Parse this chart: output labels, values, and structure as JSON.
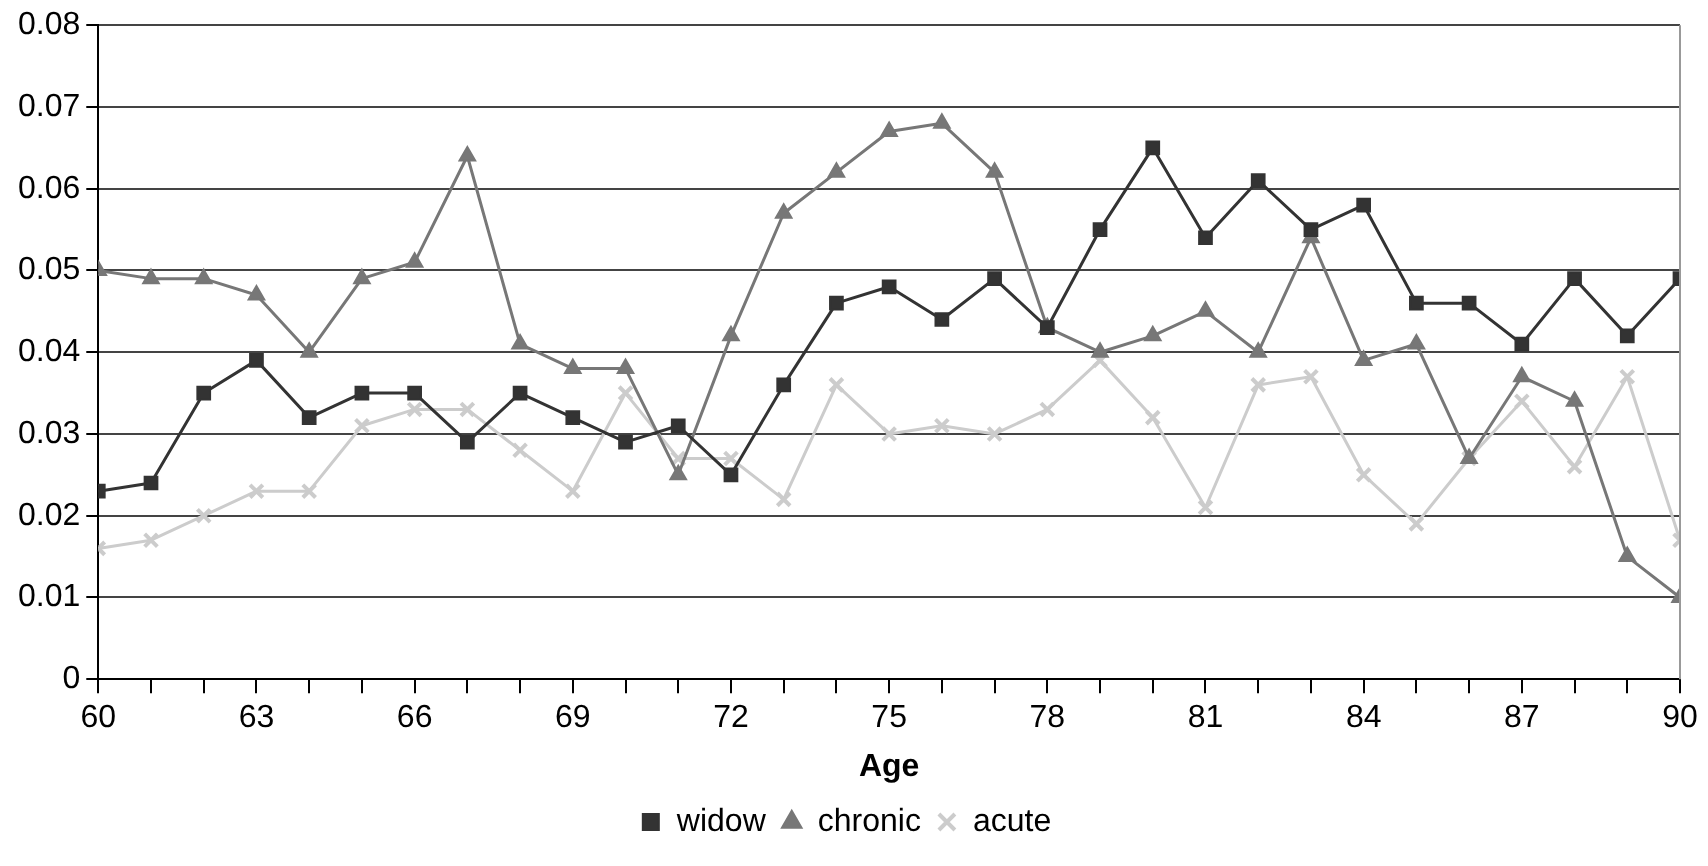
{
  "chart_data": {
    "type": "line",
    "xlabel": "Age",
    "x": [
      60,
      61,
      62,
      63,
      64,
      65,
      66,
      67,
      68,
      69,
      70,
      71,
      72,
      73,
      74,
      75,
      76,
      77,
      78,
      79,
      80,
      81,
      82,
      83,
      84,
      85,
      86,
      87,
      88,
      89,
      90
    ],
    "series": [
      {
        "name": "widow",
        "color": "#333333",
        "marker": "square",
        "values": [
          0.023,
          0.024,
          0.035,
          0.039,
          0.032,
          0.035,
          0.035,
          0.029,
          0.035,
          0.032,
          0.029,
          0.031,
          0.025,
          0.036,
          0.046,
          0.048,
          0.044,
          0.049,
          0.043,
          0.055,
          0.065,
          0.054,
          0.061,
          0.055,
          0.058,
          0.046,
          0.046,
          0.041,
          0.049,
          0.042,
          0.049
        ]
      },
      {
        "name": "chronic",
        "color": "#777777",
        "marker": "triangle",
        "values": [
          0.05,
          0.049,
          0.049,
          0.047,
          0.04,
          0.049,
          0.051,
          0.064,
          0.041,
          0.038,
          0.038,
          0.025,
          0.042,
          0.057,
          0.062,
          0.067,
          0.068,
          0.062,
          0.043,
          0.04,
          0.042,
          0.045,
          0.04,
          0.054,
          0.039,
          0.041,
          0.027,
          0.037,
          0.034,
          0.015,
          0.01
        ]
      },
      {
        "name": "acute",
        "color": "#cccccc",
        "marker": "cross",
        "values": [
          0.016,
          0.017,
          0.02,
          0.023,
          0.023,
          0.031,
          0.033,
          0.033,
          0.028,
          0.023,
          0.035,
          0.027,
          0.027,
          0.022,
          0.036,
          0.03,
          0.031,
          0.03,
          0.033,
          0.039,
          0.032,
          0.021,
          0.036,
          0.037,
          0.025,
          0.019,
          0.027,
          0.034,
          0.026,
          0.037,
          0.017
        ]
      }
    ],
    "xlim": [
      60,
      90
    ],
    "xticks": [
      60,
      {
        "value": 61,
        "label": null
      },
      {
        "value": 62,
        "label": null
      },
      63,
      {
        "value": 64,
        "label": null
      },
      {
        "value": 65,
        "label": null
      },
      66,
      {
        "value": 67,
        "label": null
      },
      {
        "value": 68,
        "label": null
      },
      69,
      {
        "value": 70,
        "label": null
      },
      {
        "value": 71,
        "label": null
      },
      72,
      {
        "value": 73,
        "label": null
      },
      {
        "value": 74,
        "label": null
      },
      75,
      {
        "value": 76,
        "label": null
      },
      {
        "value": 77,
        "label": null
      },
      78,
      {
        "value": 79,
        "label": null
      },
      {
        "value": 80,
        "label": null
      },
      81,
      {
        "value": 82,
        "label": null
      },
      {
        "value": 83,
        "label": null
      },
      84,
      {
        "value": 85,
        "label": null
      },
      {
        "value": 86,
        "label": null
      },
      87,
      {
        "value": 88,
        "label": null
      },
      {
        "value": 89,
        "label": null
      },
      90
    ],
    "ylim": [
      0,
      0.08
    ],
    "yticks": [
      0,
      0.01,
      0.02,
      0.03,
      0.04,
      0.05,
      0.06,
      0.07,
      0.08
    ],
    "grid": "y",
    "legend": "bottom",
    "line_style": "solid"
  }
}
